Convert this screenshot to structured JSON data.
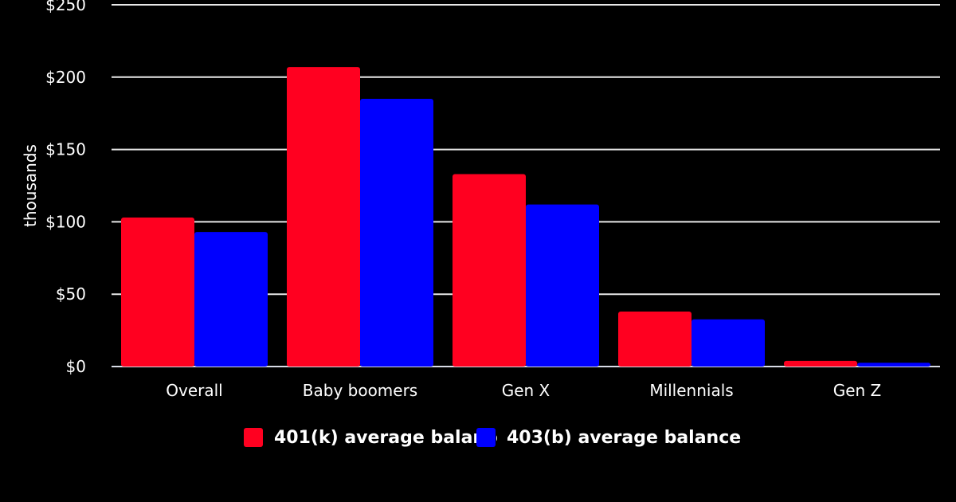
{
  "chart_data": {
    "type": "bar",
    "title": "",
    "xlabel": "",
    "ylabel": "thousands",
    "ylim": [
      0,
      250
    ],
    "yticks": [
      0,
      50,
      100,
      150,
      200,
      250
    ],
    "ytick_labels": [
      "$0",
      "$50",
      "$100",
      "$150",
      "$200",
      "$250"
    ],
    "grid": true,
    "legend_position": "bottom-center",
    "categories": [
      "Overall",
      "Baby boomers",
      "Gen X",
      "Millennials",
      "Gen Z"
    ],
    "series": [
      {
        "name": "401(k) average balance",
        "color": "#ff0020",
        "values": [
          103,
          207,
          133,
          38,
          3.9
        ]
      },
      {
        "name": "403(b) average balance",
        "color": "#0000ff",
        "values": [
          93,
          185,
          112,
          32.6,
          2.6
        ]
      }
    ]
  }
}
